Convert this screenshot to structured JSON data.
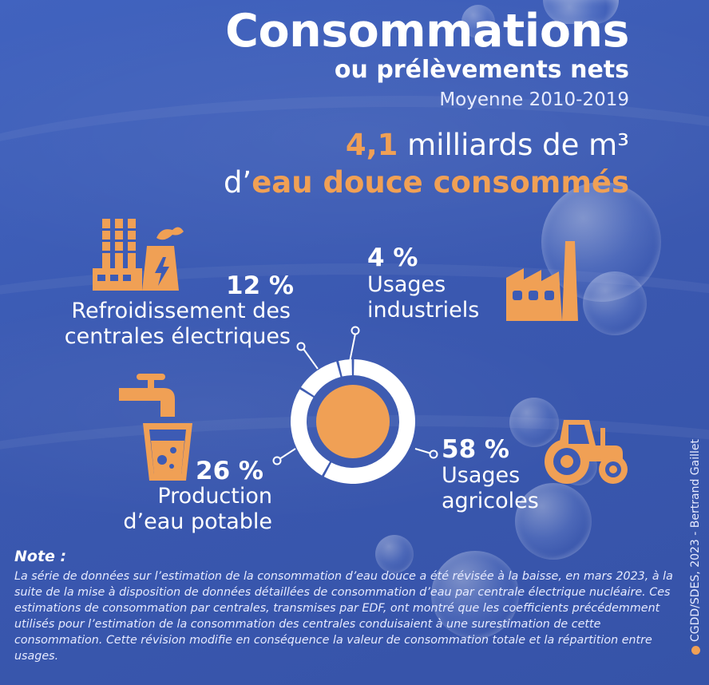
{
  "header": {
    "title": "Consommations",
    "subtitle": "ou prélèvements nets",
    "period": "Moyenne 2010-2019",
    "total_value": "4,1",
    "total_unit": " milliards de m³",
    "line2_prefix": "d’",
    "line2_emph": "eau douce consommés"
  },
  "colors": {
    "background": "#3d5bb4",
    "accent": "#f0a055",
    "text": "#ffffff"
  },
  "segments": [
    {
      "key": "agricole",
      "pct_label": "58 %",
      "label_lines": [
        "Usages",
        "agricoles"
      ],
      "icon": "tractor-icon"
    },
    {
      "key": "potable",
      "pct_label": "26 %",
      "label_lines": [
        "Production",
        "d’eau potable"
      ],
      "icon": "faucet-glass-icon"
    },
    {
      "key": "centrales",
      "pct_label": "12 %",
      "label_lines": [
        "Refroidissement des",
        "centrales électriques"
      ],
      "icon": "power-plant-icon"
    },
    {
      "key": "industriel",
      "pct_label": "4 %",
      "label_lines": [
        "Usages",
        "industriels"
      ],
      "icon": "factory-icon"
    }
  ],
  "chart_data": {
    "type": "pie",
    "title": "",
    "categories": [
      "Usages agricoles",
      "Production d’eau potable",
      "Refroidissement des centrales électriques",
      "Usages industriels"
    ],
    "values": [
      58,
      26,
      12,
      4
    ],
    "unit": "%"
  },
  "note": {
    "title": "Note :",
    "text": "La série de données sur l’estimation de la consommation d’eau douce a été révisée à la baisse, en mars 2023, à la suite de la mise à disposition de données détaillées de consommation d’eau par centrale électrique nucléaire. Ces estimations de consommation par centrales, transmises par EDF, ont montré que les coefficients précédemment utilisés pour l’estimation de la consommation des centrales conduisaient à une surestimation de cette consommation.  Cette révision modifie en conséquence la valeur de consommation totale et la répartition entre usages."
  },
  "credit": "CGDD/SDES, 2023 - Bertrand Gaillet"
}
